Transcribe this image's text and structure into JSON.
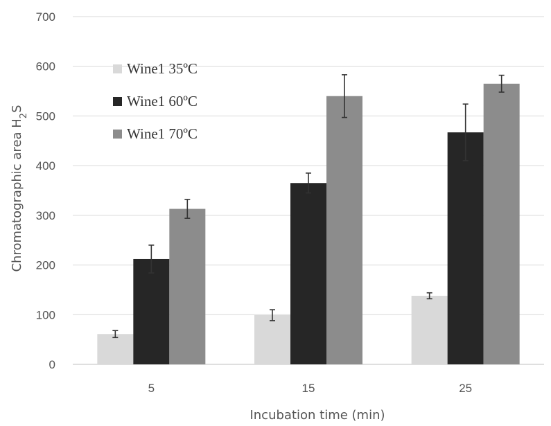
{
  "chart_data": {
    "type": "bar",
    "categories": [
      "5",
      "15",
      "25"
    ],
    "series": [
      {
        "name": "Wine1 35ºC",
        "color": "#d9d9d9",
        "values": [
          61,
          99,
          138
        ],
        "errors": [
          7,
          11,
          6
        ]
      },
      {
        "name": "Wine1 60ºC",
        "color": "#262626",
        "values": [
          212,
          365,
          467
        ],
        "errors": [
          28,
          20,
          57
        ]
      },
      {
        "name": "Wine1 70ºC",
        "color": "#8c8c8c",
        "values": [
          313,
          540,
          565
        ],
        "errors": [
          19,
          43,
          17
        ]
      }
    ],
    "xlabel": "Incubation time (min)",
    "ylabel": "Chromatographic area H",
    "ylabel_subscript": "2",
    "ylabel_suffix": "S",
    "ylim": [
      0,
      700
    ],
    "yticks": [
      0,
      100,
      200,
      300,
      400,
      500,
      600,
      700
    ],
    "grid": "horizontal",
    "legend_position": "top-left inside"
  }
}
